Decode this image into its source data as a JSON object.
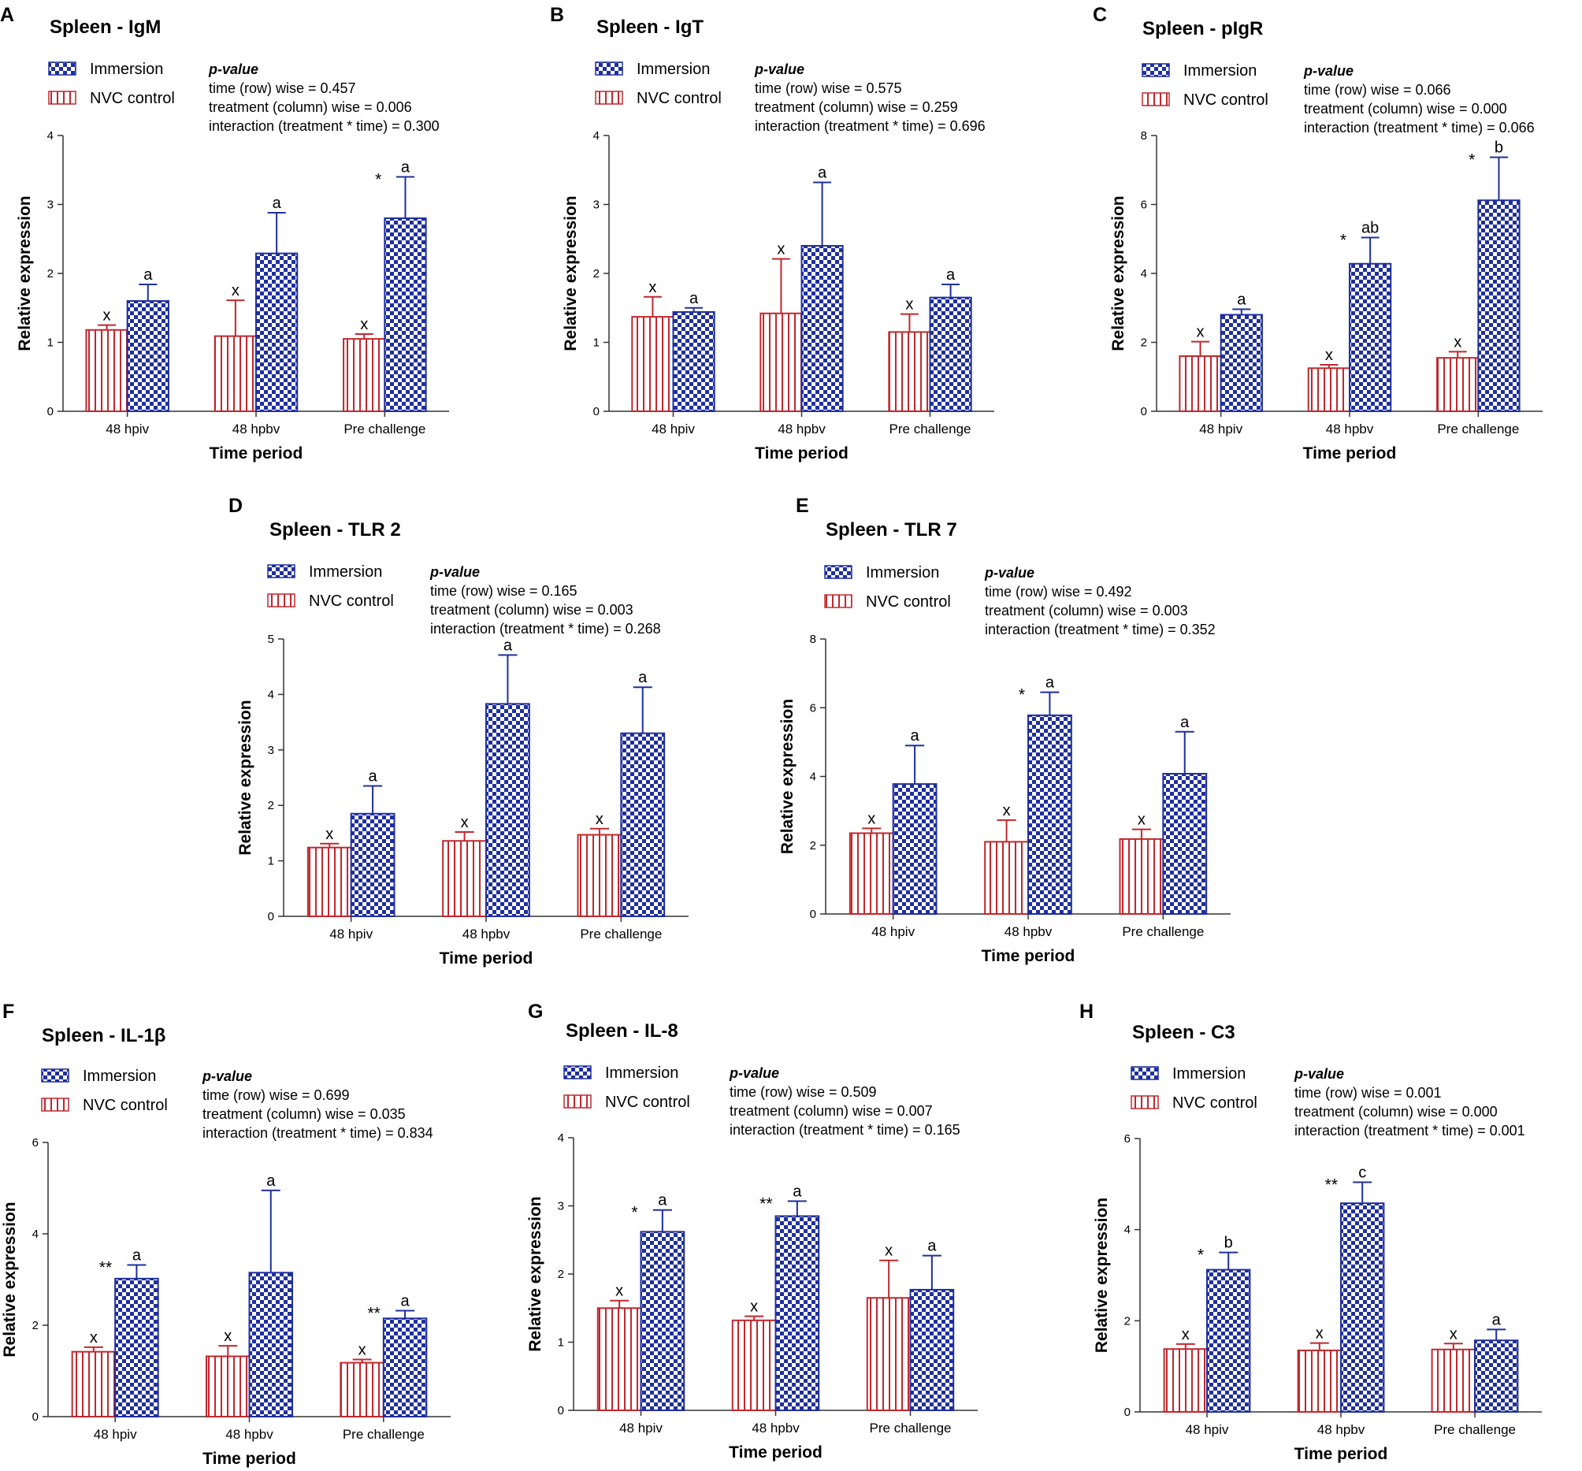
{
  "figure": {
    "categories": [
      "48 hpiv",
      "48 hpbv",
      "Pre challenge"
    ],
    "colors": {
      "immersion": "#1f2f9e",
      "control": "#c0282e",
      "axis": "#333333"
    }
  },
  "chart_data": [
    {
      "type": "bar",
      "panel": "A",
      "title": "Spleen - IgM",
      "xlabel": "Time period",
      "ylabel": "Relative expression",
      "ylim": [
        0,
        4
      ],
      "yticks": [
        0,
        1,
        2,
        3,
        4
      ],
      "categories": [
        "48 hpiv",
        "48 hpbv",
        "Pre challenge"
      ],
      "legend": [
        "Immersion",
        "NVC control"
      ],
      "pvalue": {
        "heading": "p-value",
        "lines": [
          "time (row) wise = 0.457",
          "treatment (column) wise = 0.006",
          "interaction (treatment * time)  = 0.300"
        ]
      },
      "series": [
        {
          "name": "NVC control",
          "values": [
            1.18,
            1.09,
            1.05
          ],
          "errors": [
            0.07,
            0.52,
            0.07
          ],
          "letters": [
            "x",
            "x",
            "x"
          ]
        },
        {
          "name": "Immersion",
          "values": [
            1.6,
            2.29,
            2.8
          ],
          "errors": [
            0.24,
            0.59,
            0.6
          ],
          "letters": [
            "a",
            "a",
            "a"
          ],
          "stars": [
            "",
            "",
            "*"
          ]
        }
      ]
    },
    {
      "type": "bar",
      "panel": "B",
      "title": "Spleen - IgT",
      "xlabel": "Time period",
      "ylabel": "Relative expression",
      "ylim": [
        0,
        4
      ],
      "yticks": [
        0,
        1,
        2,
        3,
        4
      ],
      "categories": [
        "48 hpiv",
        "48 hpbv",
        "Pre challenge"
      ],
      "legend": [
        "Immersion",
        "NVC control"
      ],
      "pvalue": {
        "heading": "p-value",
        "lines": [
          "time (row) wise = 0.575",
          "treatment (column) wise = 0.259",
          "interaction (treatment * time)  = 0.696"
        ]
      },
      "series": [
        {
          "name": "NVC control",
          "values": [
            1.37,
            1.42,
            1.15
          ],
          "errors": [
            0.29,
            0.79,
            0.26
          ],
          "letters": [
            "x",
            "x",
            "x"
          ]
        },
        {
          "name": "Immersion",
          "values": [
            1.44,
            2.4,
            1.65
          ],
          "errors": [
            0.06,
            0.92,
            0.19
          ],
          "letters": [
            "a",
            "a",
            "a"
          ],
          "stars": [
            "",
            "",
            ""
          ]
        }
      ]
    },
    {
      "type": "bar",
      "panel": "C",
      "title": "Spleen - pIgR",
      "xlabel": "Time period",
      "ylabel": "Relative expression",
      "ylim": [
        0,
        8
      ],
      "yticks": [
        0,
        2,
        4,
        6,
        8
      ],
      "categories": [
        "48 hpiv",
        "48 hpbv",
        "Pre challenge"
      ],
      "legend": [
        "Immersion",
        "NVC control"
      ],
      "pvalue": {
        "heading": "p-value",
        "lines": [
          "time (row) wise = 0.066",
          "treatment (column) wise = 0.000",
          "interaction (treatment * time)  = 0.066"
        ]
      },
      "series": [
        {
          "name": "NVC control",
          "values": [
            1.6,
            1.25,
            1.55
          ],
          "errors": [
            0.42,
            0.1,
            0.18
          ],
          "letters": [
            "x",
            "x",
            "x"
          ]
        },
        {
          "name": "Immersion",
          "values": [
            2.8,
            4.28,
            6.12
          ],
          "errors": [
            0.16,
            0.76,
            1.25
          ],
          "letters": [
            "a",
            "ab",
            "b"
          ],
          "stars": [
            "",
            "*",
            "*"
          ]
        }
      ]
    },
    {
      "type": "bar",
      "panel": "D",
      "title": "Spleen - TLR 2",
      "xlabel": "Time period",
      "ylabel": "Relative expression",
      "ylim": [
        0,
        5
      ],
      "yticks": [
        0,
        1,
        2,
        3,
        4,
        5
      ],
      "categories": [
        "48 hpiv",
        "48 hpbv",
        "Pre challenge"
      ],
      "legend": [
        "Immersion",
        "NVC control"
      ],
      "pvalue": {
        "heading": "p-value",
        "lines": [
          "time (row) wise = 0.165",
          "treatment (column) wise = 0.003",
          "interaction (treatment * time)  = 0.268"
        ]
      },
      "series": [
        {
          "name": "NVC control",
          "values": [
            1.24,
            1.36,
            1.47
          ],
          "errors": [
            0.07,
            0.16,
            0.11
          ],
          "letters": [
            "x",
            "x",
            "x"
          ]
        },
        {
          "name": "Immersion",
          "values": [
            1.85,
            3.83,
            3.3
          ],
          "errors": [
            0.5,
            0.88,
            0.83
          ],
          "letters": [
            "a",
            "a",
            "a"
          ],
          "stars": [
            "",
            "",
            ""
          ]
        }
      ]
    },
    {
      "type": "bar",
      "panel": "E",
      "title": "Spleen - TLR 7",
      "xlabel": "Time period",
      "ylabel": "Relative expression",
      "ylim": [
        0,
        8
      ],
      "yticks": [
        0,
        2,
        4,
        6,
        8
      ],
      "categories": [
        "48 hpiv",
        "48 hpbv",
        "Pre challenge"
      ],
      "legend": [
        "Immersion",
        "NVC control"
      ],
      "pvalue": {
        "heading": "p-value",
        "lines": [
          "time (row) wise = 0.492",
          "treatment (column) wise = 0.003",
          "interaction (treatment * time)  = 0.352"
        ]
      },
      "series": [
        {
          "name": "NVC control",
          "values": [
            2.35,
            2.1,
            2.18
          ],
          "errors": [
            0.14,
            0.63,
            0.28
          ],
          "letters": [
            "x",
            "x",
            "x"
          ]
        },
        {
          "name": "Immersion",
          "values": [
            3.78,
            5.78,
            4.08
          ],
          "errors": [
            1.12,
            0.67,
            1.22
          ],
          "letters": [
            "a",
            "a",
            "a"
          ],
          "stars": [
            "",
            "*",
            ""
          ]
        }
      ]
    },
    {
      "type": "bar",
      "panel": "F",
      "title": "Spleen - IL-1β",
      "xlabel": "Time period",
      "ylabel": "Relative expression",
      "ylim": [
        0,
        6
      ],
      "yticks": [
        0,
        2,
        4,
        6
      ],
      "categories": [
        "48 hpiv",
        "48 hpbv",
        "Pre challenge"
      ],
      "legend": [
        "Immersion",
        "NVC control"
      ],
      "pvalue": {
        "heading": "p-value",
        "lines": [
          "time (row) wise = 0.699",
          "treatment (column) wise = 0.035",
          "interaction (treatment * time)  = 0.834"
        ]
      },
      "series": [
        {
          "name": "NVC control",
          "values": [
            1.42,
            1.32,
            1.18
          ],
          "errors": [
            0.1,
            0.23,
            0.07
          ],
          "letters": [
            "x",
            "x",
            "x"
          ]
        },
        {
          "name": "Immersion",
          "values": [
            3.02,
            3.15,
            2.15
          ],
          "errors": [
            0.3,
            1.8,
            0.17
          ],
          "letters": [
            "a",
            "a",
            "a"
          ],
          "stars": [
            "**",
            "",
            "**"
          ]
        }
      ]
    },
    {
      "type": "bar",
      "panel": "G",
      "title": "Spleen - IL-8",
      "xlabel": "Time period",
      "ylabel": "Relative expression",
      "ylim": [
        0,
        4
      ],
      "yticks": [
        0,
        1,
        2,
        3,
        4
      ],
      "categories": [
        "48 hpiv",
        "48 hpbv",
        "Pre challenge"
      ],
      "legend": [
        "Immersion",
        "NVC control"
      ],
      "pvalue": {
        "heading": "p-value",
        "lines": [
          "time (row) wise = 0.509",
          "treatment (column) wise = 0.007",
          "interaction (treatment * time)  = 0.165"
        ]
      },
      "series": [
        {
          "name": "NVC control",
          "values": [
            1.5,
            1.32,
            1.65
          ],
          "errors": [
            0.11,
            0.06,
            0.55
          ],
          "letters": [
            "x",
            "x",
            "x"
          ]
        },
        {
          "name": "Immersion",
          "values": [
            2.62,
            2.85,
            1.77
          ],
          "errors": [
            0.32,
            0.22,
            0.5
          ],
          "letters": [
            "a",
            "a",
            "a"
          ],
          "stars": [
            "*",
            "**",
            ""
          ]
        }
      ]
    },
    {
      "type": "bar",
      "panel": "H",
      "title": "Spleen - C3",
      "xlabel": "Time period",
      "ylabel": "Relative expression",
      "ylim": [
        0,
        6
      ],
      "yticks": [
        0,
        2,
        4,
        6
      ],
      "categories": [
        "48 hpiv",
        "48 hpbv",
        "Pre challenge"
      ],
      "legend": [
        "Immersion",
        "NVC control"
      ],
      "pvalue": {
        "heading": "p-value",
        "lines": [
          "time (row) wise = 0.001",
          "treatment (column) wise = 0.000",
          "interaction (treatment * time)  = 0.001"
        ]
      },
      "series": [
        {
          "name": "NVC control",
          "values": [
            1.38,
            1.35,
            1.37
          ],
          "errors": [
            0.11,
            0.16,
            0.13
          ],
          "letters": [
            "x",
            "x",
            "x"
          ]
        },
        {
          "name": "Immersion",
          "values": [
            3.12,
            4.58,
            1.57
          ],
          "errors": [
            0.38,
            0.46,
            0.24
          ],
          "letters": [
            "b",
            "c",
            "a"
          ],
          "stars": [
            "*",
            "**",
            ""
          ]
        }
      ]
    }
  ]
}
